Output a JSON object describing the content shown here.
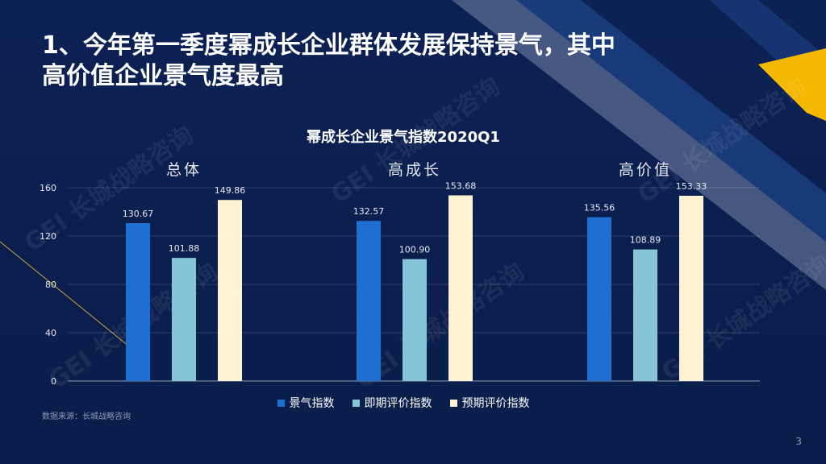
{
  "slide": {
    "title_line1": "1、今年第一季度幂成长企业群体发展保持景气，其中",
    "title_line2": "高价值企业景气度最高",
    "source": "数据来源：长城战略咨询",
    "page_number": "3"
  },
  "colors": {
    "background": "#0b1f4e",
    "series1": "#1f6fd1",
    "series2": "#86c5d8",
    "series3": "#fdf3d2",
    "accent_gold": "#f5b800"
  },
  "chart_data": {
    "type": "bar",
    "title": "幂成长企业景气指数2020Q1",
    "categories": [
      "总体",
      "高成长",
      "高价值"
    ],
    "series": [
      {
        "name": "景气指数",
        "values": [
          130.67,
          132.57,
          135.56
        ]
      },
      {
        "name": "即期评价指数",
        "values": [
          101.88,
          100.9,
          108.89
        ]
      },
      {
        "name": "预期评价指数",
        "values": [
          149.86,
          153.68,
          153.33
        ]
      }
    ],
    "value_labels": [
      [
        "130.67",
        "132.57",
        "135.56"
      ],
      [
        "101.88",
        "100.90",
        "108.89"
      ],
      [
        "149.86",
        "153.68",
        "153.33"
      ]
    ],
    "yticks": [
      "0",
      "40",
      "80",
      "120",
      "160"
    ],
    "ylim": [
      0,
      160
    ],
    "grid": true,
    "legend_position": "bottom"
  }
}
